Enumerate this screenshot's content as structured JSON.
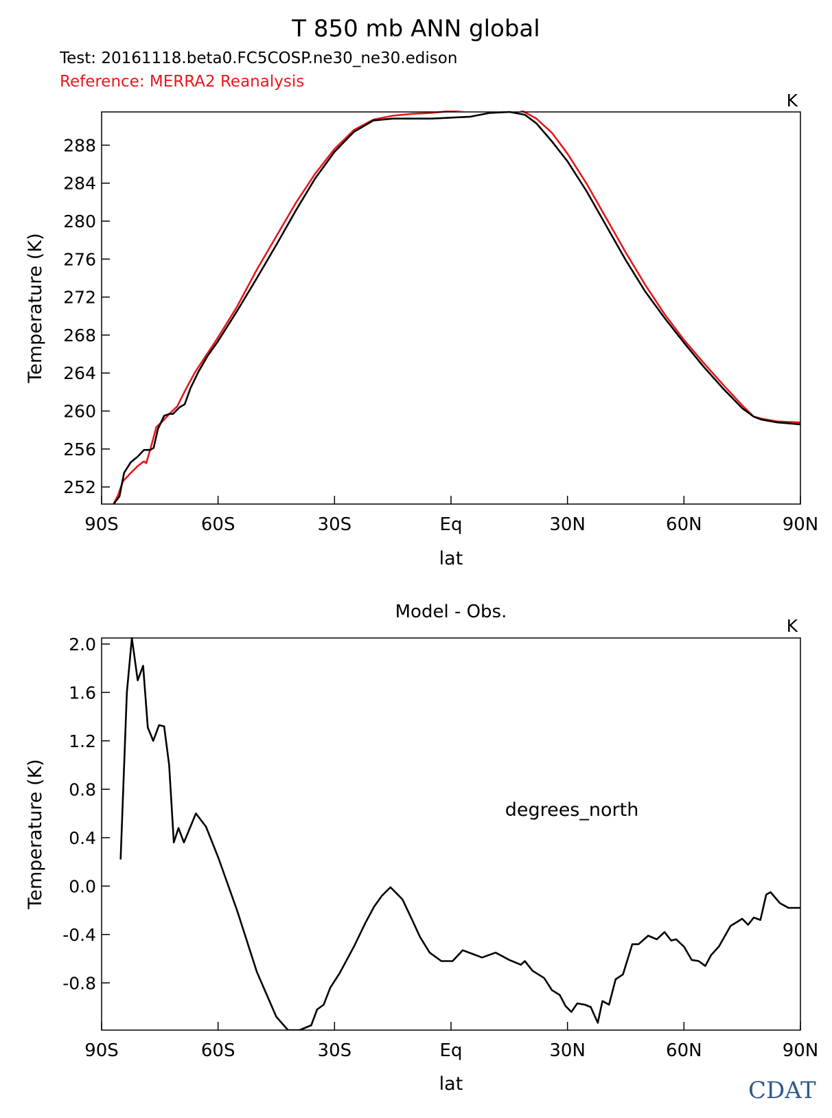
{
  "figure": {
    "title": "T 850 mb ANN global",
    "test_label": "Test: 20161118.beta0.FC5COSP.ne30_ne30.edison",
    "reference_label": "Reference: MERRA2 Reanalysis",
    "logo_text": "CDAT",
    "colors": {
      "test": "#000000",
      "reference": "#e8161b",
      "logo": "#2e5a8c"
    }
  },
  "chart_data": [
    {
      "type": "line",
      "title": "",
      "units": "K",
      "xlabel": "lat",
      "ylabel": "Temperature (K)",
      "xlim": [
        -90,
        90
      ],
      "ylim": [
        250.2,
        291.5
      ],
      "x_ticks": [
        -90,
        -60,
        -30,
        0,
        30,
        60,
        90
      ],
      "x_tick_labels": [
        "90S",
        "60S",
        "30S",
        "Eq",
        "30N",
        "60N",
        "90N"
      ],
      "y_ticks": [
        252,
        256,
        260,
        264,
        268,
        272,
        276,
        280,
        284,
        288
      ],
      "y_tick_labels": [
        "252",
        "256",
        "260",
        "264",
        "268",
        "272",
        "276",
        "280",
        "284",
        "288"
      ],
      "series": [
        {
          "name": "",
          "color": "#e8161b",
          "points": [
            [
              -86.9,
              250.2
            ],
            [
              -85.7,
              251.2
            ],
            [
              -84.5,
              252.6
            ],
            [
              -82.9,
              253.3
            ],
            [
              -80.7,
              254.2
            ],
            [
              -79.1,
              254.7
            ],
            [
              -78.5,
              254.5
            ],
            [
              -77.1,
              256.5
            ],
            [
              -75.9,
              258.3
            ],
            [
              -74.1,
              259.0
            ],
            [
              -72.3,
              259.8
            ],
            [
              -70.5,
              260.5
            ],
            [
              -68.3,
              262.3
            ],
            [
              -65.9,
              264.1
            ],
            [
              -63.5,
              265.6
            ],
            [
              -60.1,
              267.7
            ],
            [
              -55.1,
              271.0
            ],
            [
              -50.0,
              274.9
            ],
            [
              -45.0,
              278.4
            ],
            [
              -40.0,
              281.9
            ],
            [
              -35.0,
              285.0
            ],
            [
              -30.0,
              287.6
            ],
            [
              -25.0,
              289.6
            ],
            [
              -20.0,
              290.7
            ],
            [
              -15.0,
              291.1
            ],
            [
              -10.0,
              291.3
            ],
            [
              -5.0,
              291.4
            ],
            [
              0.0,
              291.6
            ],
            [
              5.0,
              291.8
            ],
            [
              10.0,
              292.0
            ],
            [
              13.8,
              292.0
            ],
            [
              18.0,
              291.7
            ],
            [
              22.0,
              290.8
            ],
            [
              26.0,
              289.3
            ],
            [
              30.0,
              287.1
            ],
            [
              35.0,
              283.9
            ],
            [
              40.0,
              280.3
            ],
            [
              45.0,
              276.7
            ],
            [
              50.0,
              273.3
            ],
            [
              55.0,
              270.2
            ],
            [
              60.0,
              267.5
            ],
            [
              65.0,
              265.1
            ],
            [
              70.0,
              262.8
            ],
            [
              75.0,
              260.6
            ],
            [
              78.0,
              259.4
            ],
            [
              80.0,
              259.2
            ],
            [
              84.0,
              258.9
            ],
            [
              90.0,
              258.8
            ]
          ]
        },
        {
          "name": "",
          "color": "#000000",
          "points": [
            [
              -86.9,
              250.2
            ],
            [
              -85.4,
              251.0
            ],
            [
              -84.2,
              253.5
            ],
            [
              -82.5,
              254.6
            ],
            [
              -80.7,
              255.2
            ],
            [
              -79.1,
              255.9
            ],
            [
              -77.5,
              255.9
            ],
            [
              -76.6,
              256.1
            ],
            [
              -75.5,
              258.1
            ],
            [
              -73.9,
              259.5
            ],
            [
              -72.5,
              259.7
            ],
            [
              -71.6,
              259.7
            ],
            [
              -69.9,
              260.4
            ],
            [
              -68.6,
              260.7
            ],
            [
              -67.1,
              262.4
            ],
            [
              -65.1,
              264.1
            ],
            [
              -62.7,
              265.8
            ],
            [
              -60.1,
              267.3
            ],
            [
              -55.0,
              270.6
            ],
            [
              -50.0,
              274.0
            ],
            [
              -45.0,
              277.5
            ],
            [
              -40.0,
              281.1
            ],
            [
              -35.0,
              284.5
            ],
            [
              -30.0,
              287.3
            ],
            [
              -25.0,
              289.4
            ],
            [
              -20.0,
              290.6
            ],
            [
              -15.0,
              290.8
            ],
            [
              -10.0,
              290.8
            ],
            [
              -5.0,
              290.8
            ],
            [
              0.0,
              290.9
            ],
            [
              5.0,
              291.0
            ],
            [
              10.0,
              291.4
            ],
            [
              15.1,
              291.5
            ],
            [
              19.0,
              291.2
            ],
            [
              22.0,
              290.3
            ],
            [
              26.0,
              288.4
            ],
            [
              30.0,
              286.3
            ],
            [
              35.0,
              283.1
            ],
            [
              40.0,
              279.5
            ],
            [
              45.0,
              275.9
            ],
            [
              50.0,
              272.6
            ],
            [
              55.0,
              269.8
            ],
            [
              60.0,
              267.2
            ],
            [
              65.0,
              264.7
            ],
            [
              70.0,
              262.4
            ],
            [
              75.0,
              260.3
            ],
            [
              78.0,
              259.4
            ],
            [
              80.0,
              259.1
            ],
            [
              84.0,
              258.8
            ],
            [
              90.0,
              258.6
            ]
          ]
        }
      ]
    },
    {
      "type": "line",
      "title": "Model - Obs.",
      "units": "K",
      "annotation": "degrees_north",
      "xlabel": "lat",
      "ylabel": "Temperature (K)",
      "xlim": [
        -90,
        90
      ],
      "ylim": [
        -1.19,
        2.05
      ],
      "x_ticks": [
        -90,
        -60,
        -30,
        0,
        30,
        60,
        90
      ],
      "x_tick_labels": [
        "90S",
        "60S",
        "30S",
        "Eq",
        "30N",
        "60N",
        "90N"
      ],
      "y_ticks": [
        -0.8,
        -0.4,
        0.0,
        0.4,
        0.8,
        1.2,
        1.6,
        2.0
      ],
      "y_tick_labels": [
        "-0.8",
        "-0.4",
        "0.0",
        "0.4",
        "0.8",
        "1.2",
        "1.6",
        "2.0"
      ],
      "series": [
        {
          "name": "",
          "color": "#000000",
          "points": [
            [
              -85.1,
              0.22
            ],
            [
              -83.5,
              1.6
            ],
            [
              -82.2,
              2.05
            ],
            [
              -80.7,
              1.7
            ],
            [
              -79.3,
              1.82
            ],
            [
              -78.1,
              1.31
            ],
            [
              -76.7,
              1.2
            ],
            [
              -75.2,
              1.33
            ],
            [
              -73.9,
              1.32
            ],
            [
              -72.6,
              1.0
            ],
            [
              -71.4,
              0.36
            ],
            [
              -70.2,
              0.48
            ],
            [
              -68.8,
              0.36
            ],
            [
              -65.7,
              0.6
            ],
            [
              -63.1,
              0.49
            ],
            [
              -60.0,
              0.24
            ],
            [
              -55.0,
              -0.21
            ],
            [
              -50.0,
              -0.71
            ],
            [
              -45.0,
              -1.08
            ],
            [
              -42.0,
              -1.19
            ],
            [
              -39.0,
              -1.19
            ],
            [
              -36.0,
              -1.15
            ],
            [
              -34.5,
              -1.02
            ],
            [
              -32.8,
              -0.98
            ],
            [
              -31.1,
              -0.84
            ],
            [
              -28.7,
              -0.72
            ],
            [
              -25.0,
              -0.5
            ],
            [
              -22.0,
              -0.3
            ],
            [
              -19.8,
              -0.17
            ],
            [
              -17.8,
              -0.08
            ],
            [
              -15.6,
              -0.01
            ],
            [
              -12.5,
              -0.11
            ],
            [
              -10.0,
              -0.28
            ],
            [
              -8.0,
              -0.42
            ],
            [
              -5.5,
              -0.55
            ],
            [
              -2.5,
              -0.62
            ],
            [
              0.4,
              -0.62
            ],
            [
              3.0,
              -0.53
            ],
            [
              5.5,
              -0.56
            ],
            [
              8.0,
              -0.59
            ],
            [
              11.5,
              -0.55
            ],
            [
              15.0,
              -0.61
            ],
            [
              18.0,
              -0.65
            ],
            [
              19.0,
              -0.62
            ],
            [
              21.0,
              -0.7
            ],
            [
              24.0,
              -0.76
            ],
            [
              26.0,
              -0.86
            ],
            [
              28.0,
              -0.9
            ],
            [
              29.5,
              -0.99
            ],
            [
              31.0,
              -1.04
            ],
            [
              32.5,
              -0.97
            ],
            [
              34.5,
              -0.98
            ],
            [
              36.0,
              -1.0
            ],
            [
              37.8,
              -1.13
            ],
            [
              39.0,
              -0.95
            ],
            [
              40.7,
              -0.98
            ],
            [
              42.4,
              -0.77
            ],
            [
              44.3,
              -0.73
            ],
            [
              46.7,
              -0.48
            ],
            [
              48.3,
              -0.48
            ],
            [
              50.8,
              -0.41
            ],
            [
              53.0,
              -0.44
            ],
            [
              55.0,
              -0.38
            ],
            [
              56.7,
              -0.45
            ],
            [
              58.0,
              -0.44
            ],
            [
              60.0,
              -0.5
            ],
            [
              62.0,
              -0.61
            ],
            [
              63.8,
              -0.62
            ],
            [
              65.5,
              -0.66
            ],
            [
              67.0,
              -0.57
            ],
            [
              69.0,
              -0.5
            ],
            [
              72.0,
              -0.33
            ],
            [
              75.0,
              -0.27
            ],
            [
              76.5,
              -0.32
            ],
            [
              78.0,
              -0.26
            ],
            [
              79.7,
              -0.28
            ],
            [
              81.2,
              -0.07
            ],
            [
              82.3,
              -0.05
            ],
            [
              84.7,
              -0.14
            ],
            [
              86.9,
              -0.18
            ],
            [
              90.0,
              -0.18
            ]
          ]
        }
      ]
    }
  ]
}
